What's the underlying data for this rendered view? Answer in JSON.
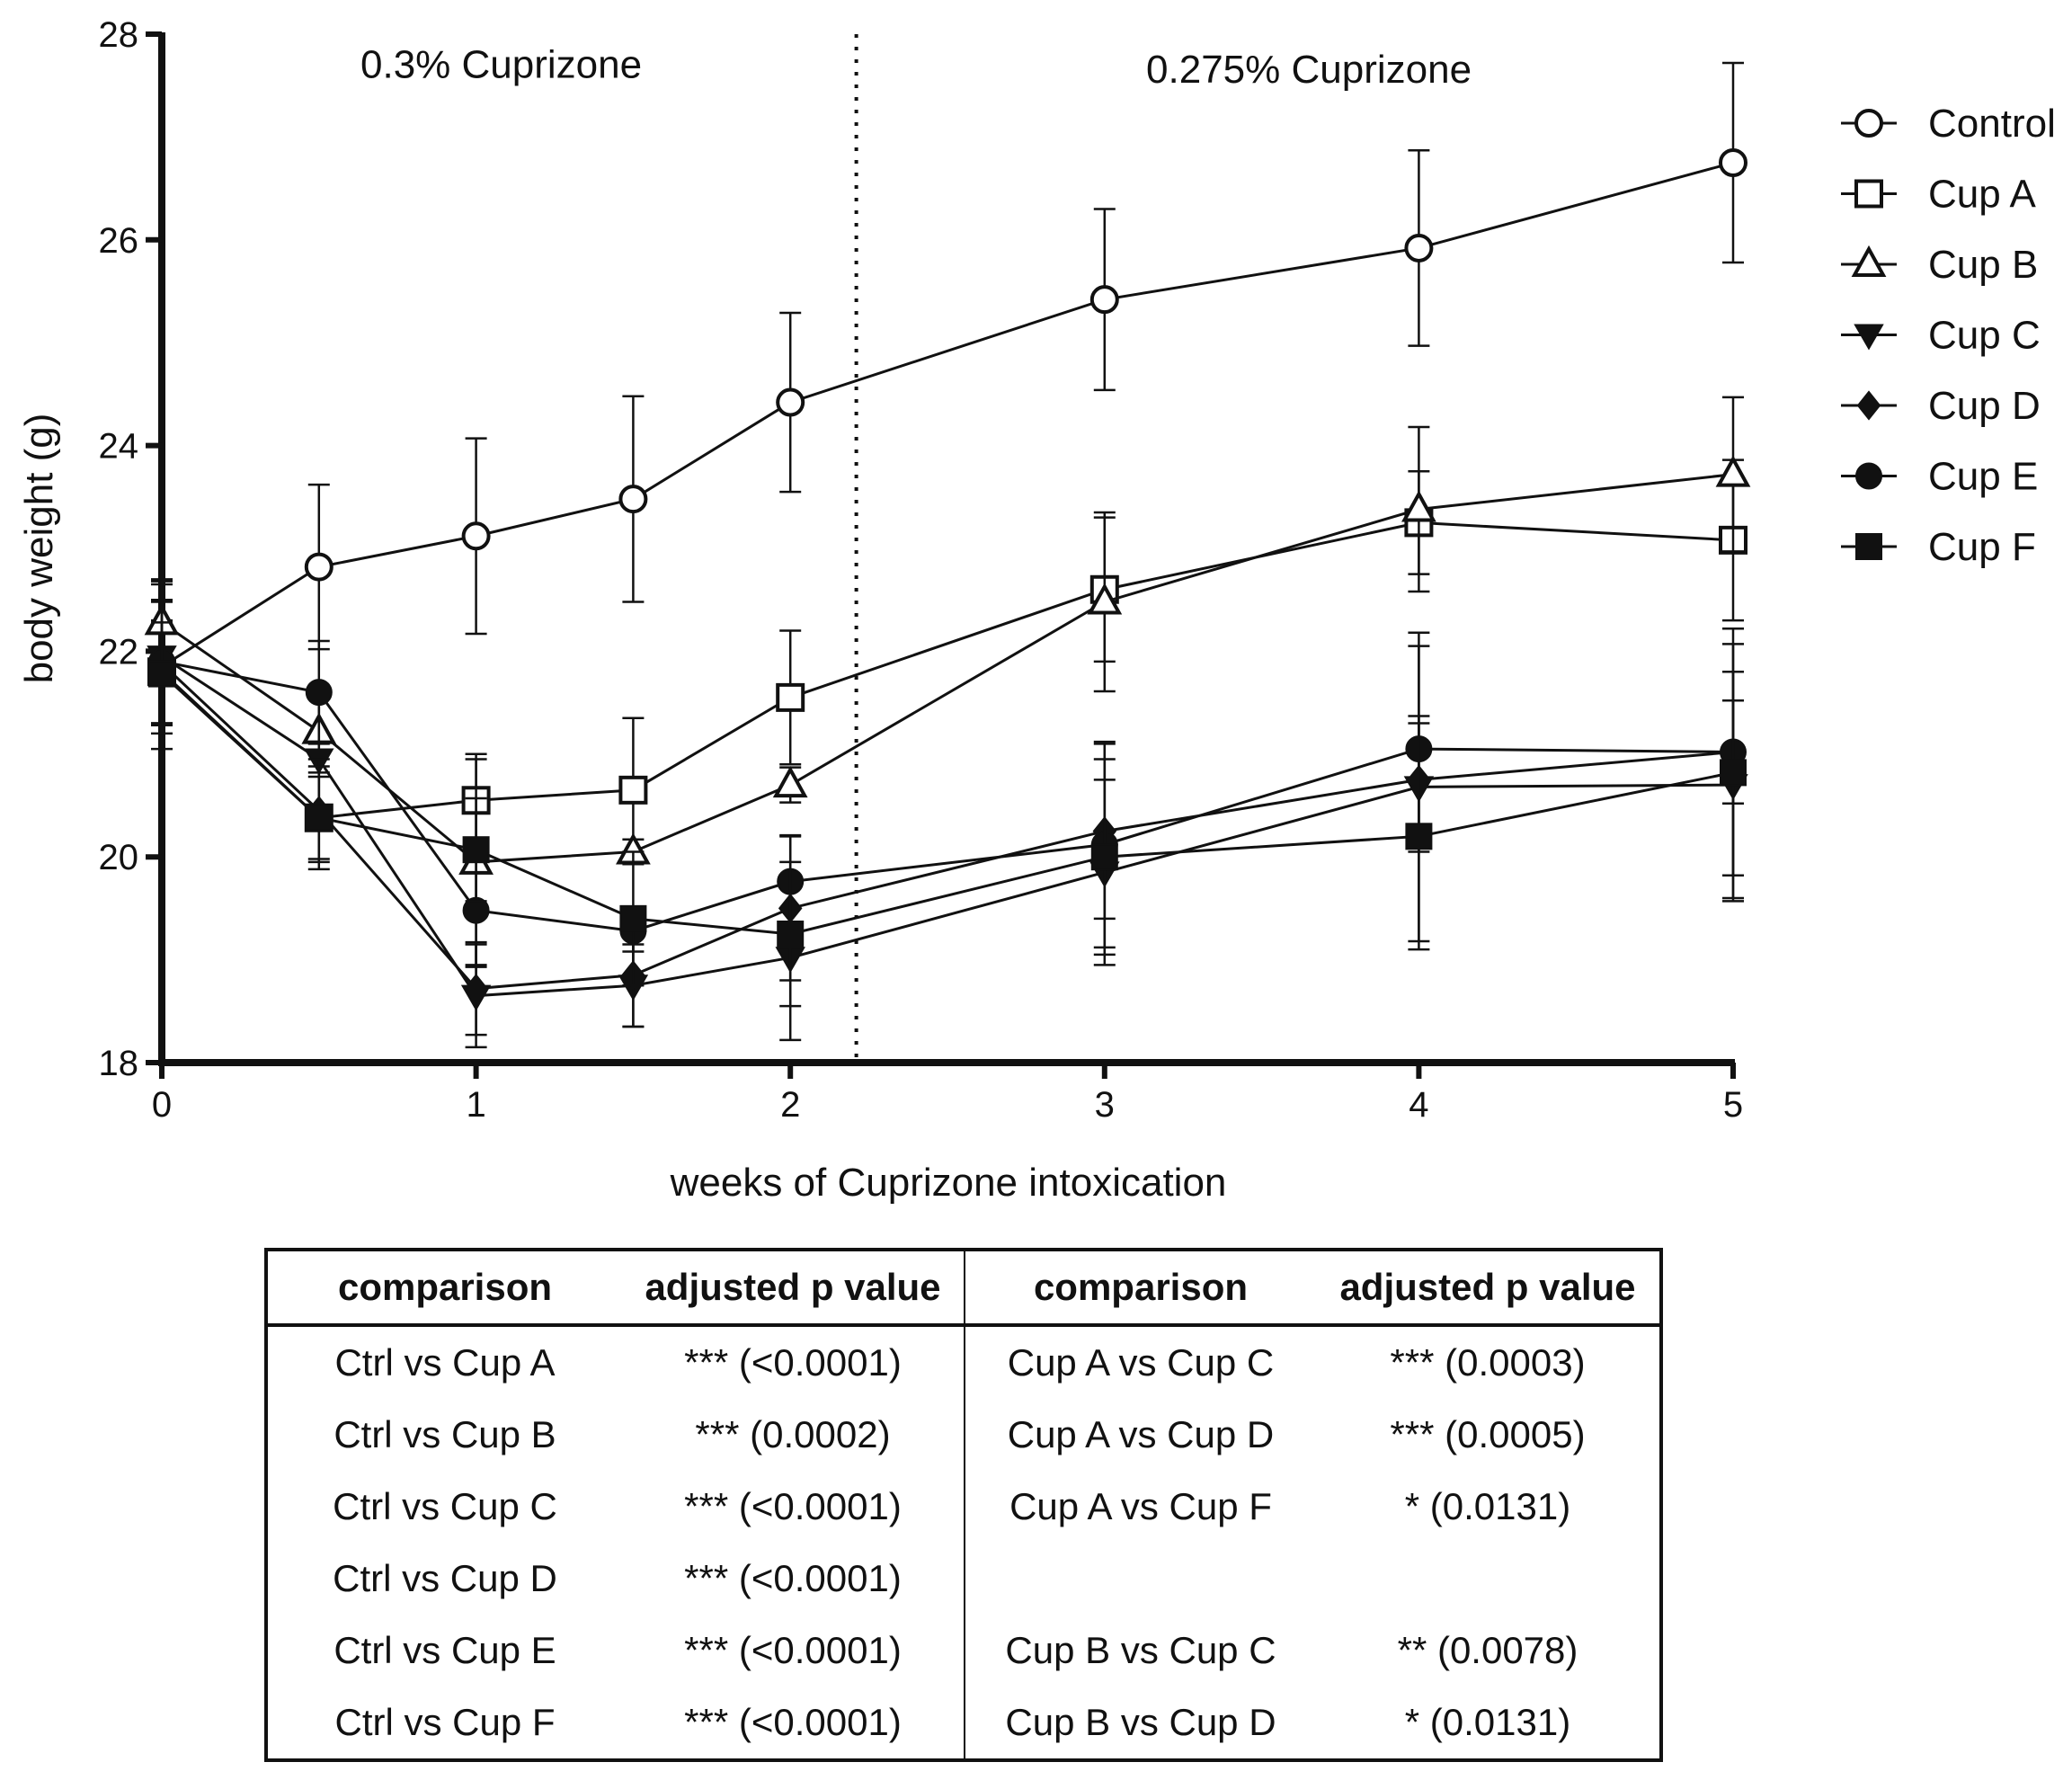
{
  "chart_data": {
    "type": "line",
    "title": "",
    "xlabel": "weeks of Cuprizone intoxication",
    "ylabel": "body weight (g)",
    "xlim": [
      0,
      5
    ],
    "ylim": [
      18,
      28
    ],
    "xticks": [
      0,
      1,
      2,
      3,
      4,
      5
    ],
    "yticks": [
      18,
      20,
      22,
      24,
      26,
      28
    ],
    "annotations": [
      {
        "text": "0.3% Cuprizone",
        "x": 1.08,
        "y": 27.7
      },
      {
        "text": "0.275% Cuprizone",
        "x": 3.65,
        "y": 27.65
      }
    ],
    "divider_x": 2.21,
    "legend_position": "right",
    "x": [
      0,
      0.5,
      1,
      1.5,
      2,
      3,
      4,
      5
    ],
    "series": [
      {
        "name": "Control",
        "marker": "circle-open",
        "values": [
          21.85,
          22.82,
          23.12,
          23.48,
          24.42,
          25.42,
          25.92,
          26.75
        ],
        "errors": [
          0.8,
          0.8,
          0.95,
          1.0,
          0.87,
          0.88,
          0.95,
          0.97
        ]
      },
      {
        "name": "Cup A",
        "marker": "square-open",
        "values": [
          21.8,
          20.38,
          20.55,
          20.65,
          21.55,
          22.6,
          23.25,
          23.08
        ],
        "errors": [
          0.5,
          0.4,
          0.45,
          0.7,
          0.65,
          0.7,
          0.5,
          0.78
        ]
      },
      {
        "name": "Cup B",
        "marker": "triangle-up-open",
        "values": [
          22.28,
          21.22,
          19.95,
          20.05,
          20.7,
          22.48,
          23.38,
          23.72
        ],
        "errors": [
          0.4,
          0.4,
          1.0,
          0.12,
          0.17,
          0.87,
          0.8,
          0.75
        ]
      },
      {
        "name": "Cup C",
        "marker": "triangle-down-filled",
        "values": [
          21.95,
          20.95,
          18.65,
          18.75,
          19.02,
          19.85,
          20.68,
          20.7
        ],
        "errors": [
          0.75,
          0.65,
          0.5,
          0.4,
          0.8,
          0.9,
          1.5,
          1.1
        ]
      },
      {
        "name": "Cup D",
        "marker": "diamond-filled",
        "values": [
          21.88,
          20.45,
          18.72,
          18.85,
          19.5,
          20.25,
          20.75,
          21.02
        ],
        "errors": [
          0.6,
          0.5,
          0.45,
          0.5,
          0.7,
          0.85,
          0.62,
          0.5
        ]
      },
      {
        "name": "Cup E",
        "marker": "circle-filled",
        "values": [
          21.9,
          21.6,
          19.48,
          19.28,
          19.76,
          20.12,
          21.05,
          21.02
        ],
        "errors": [
          0.6,
          0.5,
          0.55,
          0.2,
          0.45,
          1.0,
          1.0,
          1.2
        ]
      },
      {
        "name": "Cup F",
        "marker": "square-filled",
        "values": [
          21.78,
          20.38,
          20.07,
          19.4,
          19.25,
          20.0,
          20.2,
          20.82
        ],
        "errors": [
          0.5,
          0.5,
          0.5,
          0.65,
          0.7,
          0.95,
          1.1,
          1.25
        ]
      }
    ]
  },
  "table": {
    "headers": [
      "comparison",
      "adjusted p value",
      "comparison",
      "adjusted p value"
    ],
    "rows": [
      [
        "Ctrl vs Cup A",
        "*** (<0.0001)",
        "Cup A vs Cup C",
        "*** (0.0003)"
      ],
      [
        "Ctrl vs Cup B",
        "*** (0.0002)",
        "Cup A vs Cup D",
        "*** (0.0005)"
      ],
      [
        "Ctrl vs Cup C",
        "*** (<0.0001)",
        "Cup A vs Cup F",
        "* (0.0131)"
      ],
      [
        "Ctrl vs Cup D",
        "*** (<0.0001)",
        "",
        ""
      ],
      [
        "Ctrl vs Cup E",
        "*** (<0.0001)",
        "Cup B vs Cup C",
        "** (0.0078)"
      ],
      [
        "Ctrl vs Cup F",
        "*** (<0.0001)",
        "Cup B vs Cup D",
        "* (0.0131)"
      ]
    ]
  }
}
